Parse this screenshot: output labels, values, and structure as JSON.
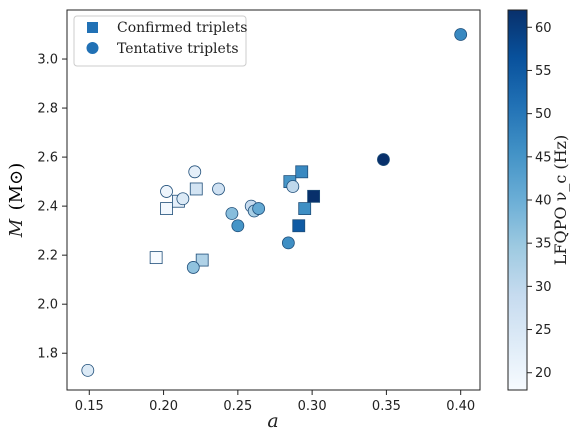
{
  "chart_data": {
    "type": "scatter",
    "title": "",
    "xlabel": "a",
    "ylabel": "M (M⊙)",
    "xlim": [
      0.135,
      0.413
    ],
    "ylim": [
      1.65,
      3.2
    ],
    "x_ticks": [
      "0.15",
      "0.20",
      "0.25",
      "0.30",
      "0.35",
      "0.40"
    ],
    "x_tick_values": [
      0.15,
      0.2,
      0.25,
      0.3,
      0.35,
      0.4
    ],
    "y_ticks": [
      "1.8",
      "2.0",
      "2.2",
      "2.4",
      "2.6",
      "2.8",
      "3.0"
    ],
    "y_tick_values": [
      1.8,
      2.0,
      2.2,
      2.4,
      2.6,
      2.8,
      3.0
    ],
    "legend_position": "top-left",
    "grid": false,
    "colorbar": {
      "label": "LFQPO ν_c (Hz)",
      "min": 18,
      "max": 62,
      "ticks": [
        "20",
        "25",
        "30",
        "35",
        "40",
        "45",
        "50",
        "55",
        "60"
      ],
      "tick_values": [
        20,
        25,
        30,
        35,
        40,
        45,
        50,
        55,
        60
      ],
      "colormap": "Blues"
    },
    "series": [
      {
        "name": "Confirmed triplets",
        "marker": "square",
        "points": [
          {
            "x": 0.195,
            "y": 2.19,
            "c": 18
          },
          {
            "x": 0.202,
            "y": 2.39,
            "c": 19
          },
          {
            "x": 0.21,
            "y": 2.42,
            "c": 22
          },
          {
            "x": 0.222,
            "y": 2.47,
            "c": 26
          },
          {
            "x": 0.226,
            "y": 2.18,
            "c": 32
          },
          {
            "x": 0.285,
            "y": 2.5,
            "c": 45
          },
          {
            "x": 0.293,
            "y": 2.54,
            "c": 47
          },
          {
            "x": 0.295,
            "y": 2.39,
            "c": 46
          },
          {
            "x": 0.291,
            "y": 2.32,
            "c": 55
          },
          {
            "x": 0.301,
            "y": 2.44,
            "c": 62
          }
        ]
      },
      {
        "name": "Tentative triplets",
        "marker": "circle",
        "points": [
          {
            "x": 0.149,
            "y": 1.73,
            "c": 24
          },
          {
            "x": 0.202,
            "y": 2.46,
            "c": 20
          },
          {
            "x": 0.213,
            "y": 2.43,
            "c": 24
          },
          {
            "x": 0.221,
            "y": 2.54,
            "c": 22
          },
          {
            "x": 0.22,
            "y": 2.15,
            "c": 36
          },
          {
            "x": 0.237,
            "y": 2.47,
            "c": 27
          },
          {
            "x": 0.246,
            "y": 2.37,
            "c": 37
          },
          {
            "x": 0.25,
            "y": 2.32,
            "c": 45
          },
          {
            "x": 0.259,
            "y": 2.4,
            "c": 29
          },
          {
            "x": 0.261,
            "y": 2.38,
            "c": 33
          },
          {
            "x": 0.264,
            "y": 2.39,
            "c": 41
          },
          {
            "x": 0.284,
            "y": 2.25,
            "c": 46
          },
          {
            "x": 0.287,
            "y": 2.48,
            "c": 30
          },
          {
            "x": 0.348,
            "y": 2.59,
            "c": 62
          },
          {
            "x": 0.4,
            "y": 3.1,
            "c": 47
          }
        ]
      }
    ]
  },
  "legend": {
    "confirmed_label": "Confirmed triplets",
    "tentative_label": "Tentative triplets"
  },
  "axes": {
    "xlabel": "a",
    "ylabel_symbol": "M",
    "ylabel_unit": "(M⊙)",
    "cbar_label": "LFQPO ν_c (Hz)"
  }
}
